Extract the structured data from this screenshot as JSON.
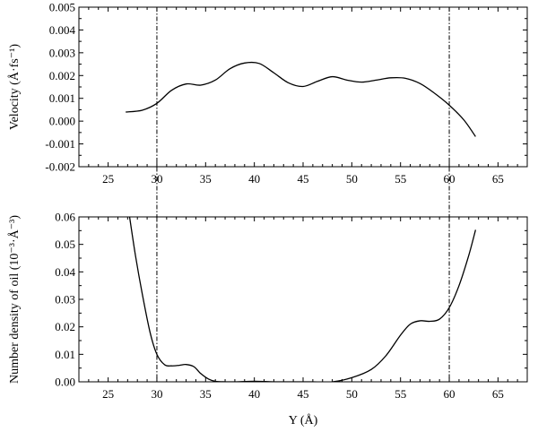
{
  "chart_data": [
    {
      "type": "line",
      "title": "",
      "xlabel": "",
      "ylabel": "Velocity (Å·fs⁻¹)",
      "xlim": [
        22,
        68
      ],
      "ylim": [
        -0.002,
        0.005
      ],
      "xticks": [
        25,
        30,
        35,
        40,
        45,
        50,
        55,
        60,
        65
      ],
      "xtick_labels": [
        "25",
        "30",
        "35",
        "40",
        "45",
        "50",
        "55",
        "60",
        "65"
      ],
      "yticks": [
        -0.002,
        -0.001,
        0.0,
        0.001,
        0.002,
        0.003,
        0.004,
        0.005
      ],
      "ytick_labels": [
        "-0.002",
        "-0.001",
        "0.000",
        "0.001",
        "0.002",
        "0.003",
        "0.004",
        "0.005"
      ],
      "grid": false,
      "reference_lines_x": [
        30,
        60
      ],
      "series": [
        {
          "x": [
            26.8,
            28.5,
            30.0,
            31.5,
            33.0,
            34.5,
            36.0,
            37.5,
            39.0,
            40.5,
            42.0,
            43.5,
            45.0,
            46.5,
            48.0,
            49.5,
            51.0,
            52.5,
            54.0,
            55.5,
            57.0,
            58.5,
            60.0,
            61.5,
            62.7
          ],
          "y": [
            0.0004,
            0.00048,
            0.00078,
            0.00135,
            0.00163,
            0.00158,
            0.0018,
            0.0023,
            0.00255,
            0.00253,
            0.00212,
            0.00168,
            0.00152,
            0.00175,
            0.00195,
            0.0018,
            0.00171,
            0.0018,
            0.0019,
            0.00188,
            0.00165,
            0.00122,
            0.0007,
            5e-05,
            -0.00068
          ]
        }
      ]
    },
    {
      "type": "line",
      "title": "",
      "xlabel": "Y (Å)",
      "ylabel": "Number density of oil (10⁻³·Å⁻³)",
      "xlim": [
        22,
        68
      ],
      "ylim": [
        0.0,
        0.06
      ],
      "xticks": [
        25,
        30,
        35,
        40,
        45,
        50,
        55,
        60,
        65
      ],
      "xtick_labels": [
        "25",
        "30",
        "35",
        "40",
        "45",
        "50",
        "55",
        "60",
        "65"
      ],
      "yticks": [
        0.0,
        0.01,
        0.02,
        0.03,
        0.04,
        0.05,
        0.06
      ],
      "ytick_labels": [
        "0.00",
        "0.01",
        "0.02",
        "0.03",
        "0.04",
        "0.05",
        "0.06"
      ],
      "grid": false,
      "reference_lines_x": [
        30,
        60
      ],
      "series": [
        {
          "x": [
            27.2,
            27.8,
            28.5,
            29.3,
            30.0,
            30.8,
            31.5,
            32.3,
            33.0,
            33.8,
            34.5,
            35.3,
            36.0,
            37.0,
            38.0,
            40.0,
            42.0,
            44.0,
            46.0,
            48.0,
            50.0,
            52.0,
            53.5,
            55.0,
            56.0,
            57.0,
            58.0,
            59.0,
            60.0,
            61.0,
            62.0,
            62.7
          ],
          "y": [
            0.06,
            0.046,
            0.032,
            0.018,
            0.01,
            0.0062,
            0.0058,
            0.006,
            0.0063,
            0.0055,
            0.003,
            0.001,
            0.0002,
            0.0,
            0.0,
            0.0002,
            0.0,
            0.0,
            0.0,
            0.0,
            0.0015,
            0.0045,
            0.0095,
            0.017,
            0.021,
            0.0222,
            0.022,
            0.0228,
            0.027,
            0.035,
            0.046,
            0.0553
          ]
        }
      ]
    }
  ]
}
